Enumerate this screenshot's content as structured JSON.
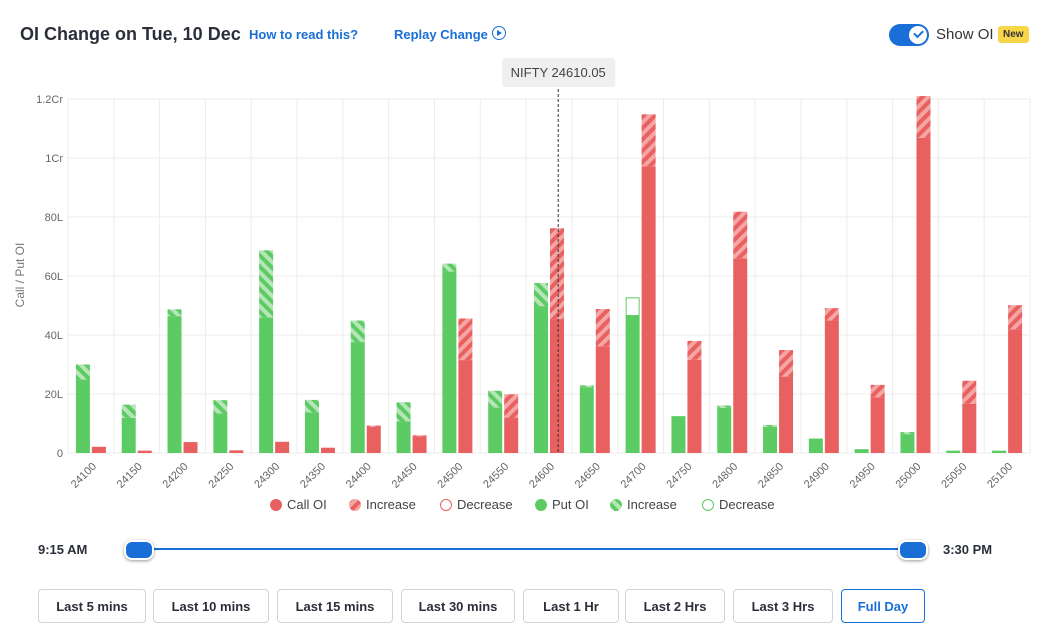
{
  "header": {
    "title": "OI Change on Tue, 10 Dec",
    "how_to_read": "How to read this?",
    "replay_change": "Replay Change",
    "show_oi_label": "Show OI",
    "show_oi_enabled": true,
    "badge": "New"
  },
  "colors": {
    "call": "#e8605f",
    "call_light": "#f4a5a4",
    "put": "#5dcb63",
    "put_light": "#b6e6b8",
    "accent": "#1a6fd6"
  },
  "chart_data": {
    "type": "bar",
    "ylabel": "Call / Put OI",
    "ylim": [
      0,
      12000000
    ],
    "yticks": [
      0,
      2000000,
      4000000,
      6000000,
      8000000,
      10000000,
      12000000
    ],
    "ytick_labels": [
      "0",
      "20L",
      "40L",
      "60L",
      "80L",
      "1Cr",
      "1.2Cr"
    ],
    "categories": [
      "24100",
      "24150",
      "24200",
      "24250",
      "24300",
      "24350",
      "24400",
      "24450",
      "24500",
      "24550",
      "24600",
      "24650",
      "24700",
      "24750",
      "24800",
      "24850",
      "24900",
      "24950",
      "25000",
      "25050",
      "25100"
    ],
    "spot_label": "NIFTY 24610.05",
    "spot_value": 24610.05,
    "spot_strike": "24600",
    "call_oi": [
      210000,
      80000,
      370000,
      90000,
      380000,
      180000,
      930000,
      600000,
      4560000,
      1990000,
      7620000,
      4880000,
      11480000,
      3800000,
      8180000,
      3490000,
      4910000,
      2310000,
      12100000,
      2450000,
      5010000
    ],
    "call_oi_change": [
      0,
      0,
      0,
      0,
      0,
      0,
      50000,
      30000,
      1410000,
      790000,
      3080000,
      1260000,
      1760000,
      640000,
      1580000,
      900000,
      420000,
      420000,
      1420000,
      780000,
      820000
    ],
    "put_oi": [
      3000000,
      1640000,
      4870000,
      1790000,
      6870000,
      1800000,
      4490000,
      1720000,
      6420000,
      2110000,
      5760000,
      2290000,
      4660000,
      1250000,
      1610000,
      950000,
      490000,
      130000,
      710000,
      80000,
      80000
    ],
    "put_oi_change": [
      510000,
      450000,
      230000,
      450000,
      2280000,
      420000,
      730000,
      650000,
      270000,
      570000,
      780000,
      60000,
      -600000,
      0,
      80000,
      60000,
      0,
      0,
      70000,
      0,
      0
    ],
    "legend": [
      "Call OI",
      "Increase",
      "Decrease",
      "Put OI",
      "Increase",
      "Decrease"
    ],
    "legend_placement": "bottom",
    "grid": true
  },
  "timeline": {
    "start_label": "9:15 AM",
    "end_label": "3:30 PM"
  },
  "buttons": [
    "Last 5 mins",
    "Last 10 mins",
    "Last 15 mins",
    "Last 30 mins",
    "Last 1 Hr",
    "Last 2 Hrs",
    "Last 3 Hrs",
    "Full Day"
  ],
  "active_button": "Full Day"
}
